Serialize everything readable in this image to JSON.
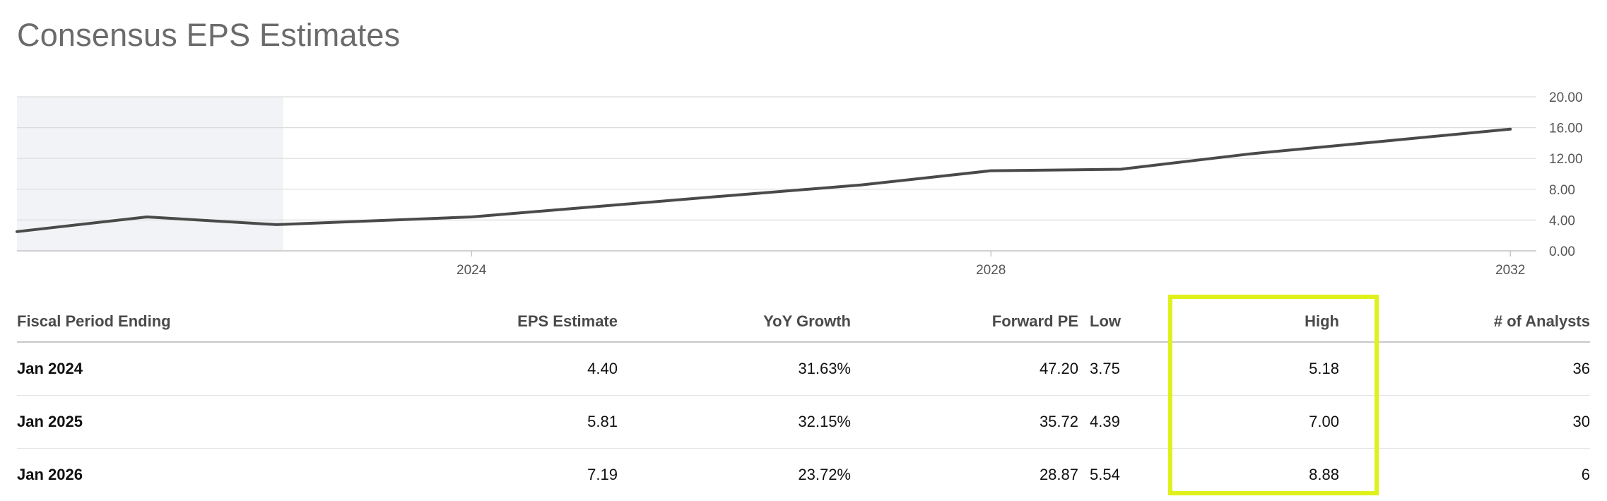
{
  "page": {
    "title": "Consensus EPS Estimates"
  },
  "chart_data": {
    "type": "line",
    "x": [
      2020.5,
      2021.5,
      2022.5,
      2024,
      2025,
      2026,
      2027,
      2028,
      2029,
      2030,
      2031,
      2032
    ],
    "series": [
      {
        "values": [
          2.5,
          4.4,
          3.4,
          4.4,
          5.81,
          7.19,
          8.55,
          10.4,
          10.6,
          12.6,
          14.2,
          15.8
        ]
      }
    ],
    "historical_region_end": 2022.55,
    "x_ticks": [
      2024,
      2028,
      2032
    ],
    "x_tick_labels": [
      "2024",
      "2028",
      "2032"
    ],
    "y_ticks": [
      0,
      4,
      8,
      12,
      16,
      20
    ],
    "y_tick_labels": [
      "0.00",
      "4.00",
      "8.00",
      "12.00",
      "16.00",
      "20.00"
    ],
    "xlim": [
      2020.5,
      2032.2
    ],
    "ylim": [
      0,
      20
    ],
    "y_axis_side": "right",
    "grid": true,
    "colors": {
      "line": "#4a4a4a",
      "grid": "#dcdcdc",
      "historical_shade": "#f2f3f6"
    }
  },
  "table": {
    "headers": {
      "period": "Fiscal Period Ending",
      "eps": "EPS Estimate",
      "yoy": "YoY Growth",
      "fpe": "Forward PE",
      "low": "Low",
      "high": "High",
      "analysts": "# of Analysts"
    },
    "rows": [
      {
        "period": "Jan 2024",
        "eps": "4.40",
        "yoy": "31.63%",
        "fpe": "47.20",
        "low": "3.75",
        "high": "5.18",
        "analysts": "36"
      },
      {
        "period": "Jan 2025",
        "eps": "5.81",
        "yoy": "32.15%",
        "fpe": "35.72",
        "low": "4.39",
        "high": "7.00",
        "analysts": "30"
      },
      {
        "period": "Jan 2026",
        "eps": "7.19",
        "yoy": "23.72%",
        "fpe": "28.87",
        "low": "5.54",
        "high": "8.88",
        "analysts": "6"
      }
    ]
  },
  "highlight": {
    "color": "#dff11a"
  }
}
